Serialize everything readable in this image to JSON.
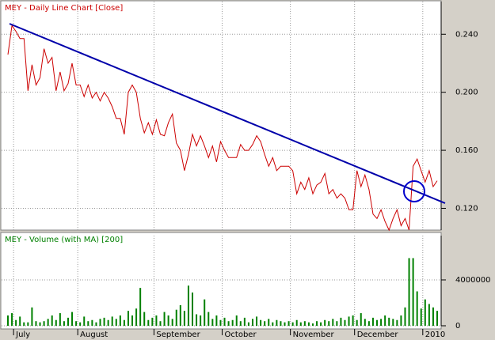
{
  "chart_data": [
    {
      "type": "line",
      "title": "MEY - Daily Line Chart [Close]",
      "color": "#cc0000",
      "values": [
        0.226,
        0.246,
        0.242,
        0.237,
        0.237,
        0.201,
        0.219,
        0.205,
        0.21,
        0.23,
        0.22,
        0.224,
        0.201,
        0.214,
        0.201,
        0.206,
        0.22,
        0.205,
        0.205,
        0.197,
        0.205,
        0.196,
        0.2,
        0.194,
        0.2,
        0.196,
        0.19,
        0.182,
        0.182,
        0.171,
        0.2,
        0.205,
        0.2,
        0.182,
        0.172,
        0.179,
        0.171,
        0.181,
        0.171,
        0.17,
        0.179,
        0.185,
        0.165,
        0.16,
        0.146,
        0.157,
        0.171,
        0.163,
        0.17,
        0.163,
        0.155,
        0.163,
        0.152,
        0.166,
        0.16,
        0.155,
        0.155,
        0.155,
        0.164,
        0.16,
        0.16,
        0.164,
        0.17,
        0.166,
        0.157,
        0.149,
        0.155,
        0.146,
        0.149,
        0.149,
        0.149,
        0.146,
        0.13,
        0.138,
        0.133,
        0.141,
        0.13,
        0.136,
        0.138,
        0.144,
        0.13,
        0.133,
        0.127,
        0.13,
        0.127,
        0.119,
        0.119,
        0.146,
        0.135,
        0.143,
        0.133,
        0.116,
        0.113,
        0.119,
        0.111,
        0.105,
        0.113,
        0.119,
        0.108,
        0.113,
        0.105,
        0.149,
        0.154,
        0.146,
        0.138,
        0.146,
        0.135,
        0.139
      ],
      "ylim": [
        0.105,
        0.2625
      ],
      "yticks": [
        {
          "value": 0.12,
          "label": "0.120"
        },
        {
          "value": 0.16,
          "label": "0.160"
        },
        {
          "value": 0.2,
          "label": "0.200"
        },
        {
          "value": 0.24,
          "label": "0.240"
        }
      ],
      "grid": true
    },
    {
      "type": "bar",
      "title": "MEY - Volume (with MA) [200]",
      "color": "#008000",
      "values": [
        900000,
        1100000,
        500000,
        800000,
        300000,
        300000,
        1600000,
        400000,
        300000,
        400000,
        600000,
        900000,
        500000,
        1100000,
        400000,
        700000,
        1200000,
        400000,
        300000,
        800000,
        400000,
        500000,
        300000,
        600000,
        700000,
        500000,
        800000,
        600000,
        900000,
        500000,
        1300000,
        900000,
        1500000,
        3300000,
        1200000,
        500000,
        700000,
        900000,
        400000,
        1200000,
        900000,
        600000,
        1400000,
        1800000,
        1300000,
        3500000,
        2900000,
        1000000,
        900000,
        2300000,
        1200000,
        600000,
        900000,
        500000,
        700000,
        400000,
        500000,
        900000,
        400000,
        700000,
        300000,
        600000,
        800000,
        500000,
        400000,
        600000,
        300000,
        500000,
        400000,
        300000,
        400000,
        300000,
        500000,
        300000,
        400000,
        300000,
        200000,
        400000,
        300000,
        500000,
        400000,
        600000,
        400000,
        700000,
        500000,
        800000,
        900000,
        500000,
        1100000,
        600000,
        400000,
        700000,
        500000,
        600000,
        900000,
        700000,
        600000,
        500000,
        900000,
        1600000,
        5900000,
        5900000,
        3000000,
        1500000,
        2300000,
        1900000,
        1600000,
        1300000
      ],
      "ylim": [
        0,
        7860000
      ],
      "yticks": [
        0,
        4000000
      ],
      "xticks": [
        {
          "value": 2,
          "label": "July"
        },
        {
          "value": 18,
          "label": "August"
        },
        {
          "value": 37,
          "label": "September"
        },
        {
          "value": 54,
          "label": "October"
        },
        {
          "value": 71,
          "label": "November"
        },
        {
          "value": 87,
          "label": "December"
        },
        {
          "value": 104,
          "label": "2010"
        }
      ],
      "grid": true
    }
  ]
}
